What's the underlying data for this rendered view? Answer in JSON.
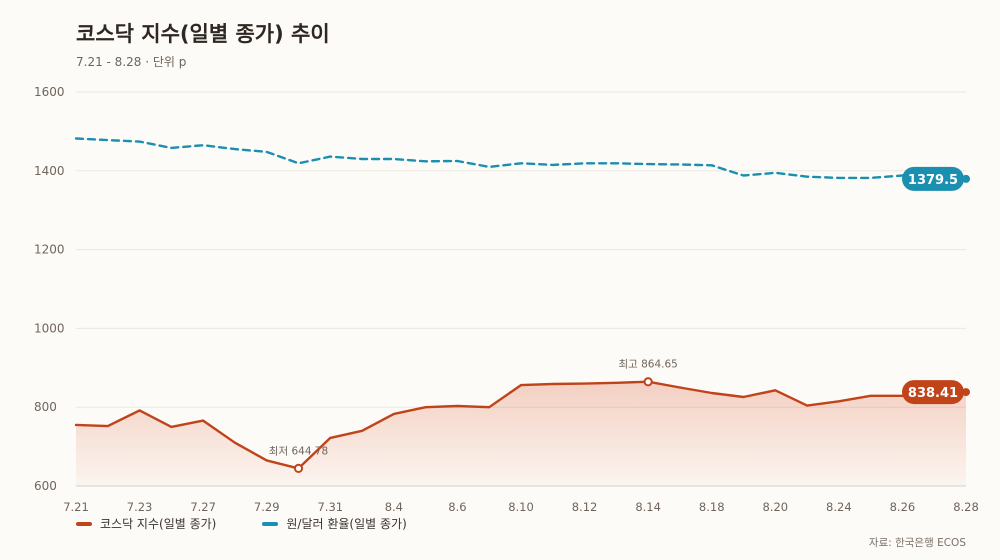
{
  "chart_data": {
    "type": "line",
    "title": "코스닥 지수(일별 종가) 추이",
    "subtitle": "7.21 - 8.28 · 단위 p",
    "source": "자료: 한국은행 ECOS",
    "ylim": [
      600,
      1600
    ],
    "yticks": [
      600,
      800,
      1000,
      1200,
      1400,
      1600
    ],
    "grid": true,
    "legend_position": "bottom-left",
    "x": [
      "7.21",
      "7.22",
      "7.23",
      "7.24",
      "7.27",
      "7.28",
      "7.29",
      "7.30",
      "7.31",
      "8.1",
      "8.4",
      "8.5",
      "8.6",
      "8.7",
      "8.10",
      "8.11",
      "8.12",
      "8.13",
      "8.14",
      "8.17",
      "8.18",
      "8.19",
      "8.20",
      "8.21",
      "8.24",
      "8.25",
      "8.26",
      "8.27",
      "8.28"
    ],
    "xtick_labels": [
      "7.21",
      "7.23",
      "7.27",
      "7.29",
      "7.31",
      "8.4",
      "8.6",
      "8.10",
      "8.12",
      "8.14",
      "8.18",
      "8.20",
      "8.24",
      "8.26",
      "8.28"
    ],
    "series": [
      {
        "name": "코스닥 지수(일별 종가)",
        "color": "#c0431a",
        "style": "solid",
        "area": true,
        "values": [
          755,
          752,
          792,
          750,
          766,
          710,
          665,
          644.78,
          722,
          740,
          783,
          800,
          803,
          800,
          856,
          859,
          860,
          862,
          864.65,
          850,
          836,
          826,
          843,
          804,
          815,
          829,
          829,
          830,
          838.41
        ],
        "end_label": "838.41"
      },
      {
        "name": "원/달러 환율(일별 종가)",
        "color": "#1a8fb0",
        "style": "dashed",
        "area": false,
        "values": [
          1482,
          1478,
          1474,
          1458,
          1465,
          1455,
          1448,
          1419,
          1436,
          1430,
          1430,
          1424,
          1425,
          1410,
          1419,
          1415,
          1419,
          1419,
          1417,
          1416,
          1414,
          1388,
          1395,
          1385,
          1382,
          1382,
          1388,
          1390,
          1379.5
        ],
        "end_label": "1379.5"
      }
    ],
    "annotations": [
      {
        "series": 0,
        "x": "7.30",
        "text": "최저 644.78"
      },
      {
        "series": 0,
        "x": "8.14",
        "text": "최고 864.65"
      }
    ]
  }
}
